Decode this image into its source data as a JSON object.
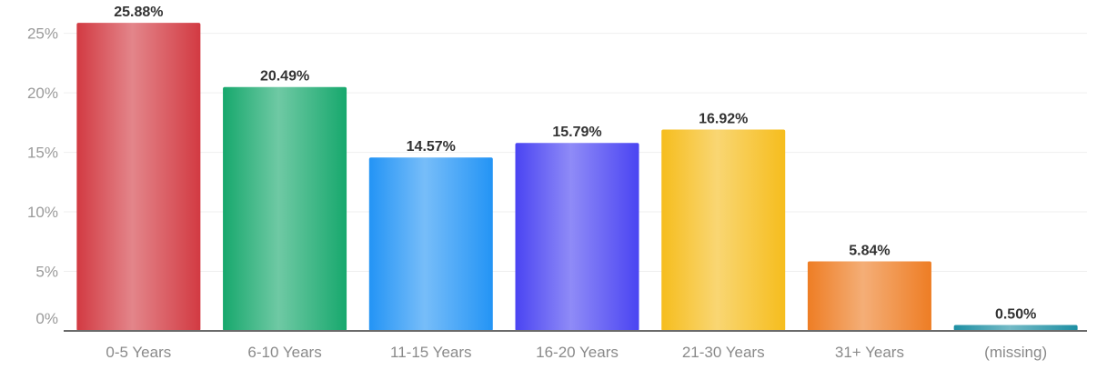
{
  "chart_data": {
    "type": "bar",
    "categories": [
      "0-5 Years",
      "6-10 Years",
      "11-15 Years",
      "16-20 Years",
      "21-30 Years",
      "31+ Years",
      "(missing)"
    ],
    "values": [
      25.88,
      20.49,
      14.57,
      15.79,
      16.92,
      5.84,
      0.5
    ],
    "data_labels": [
      "25.88%",
      "20.49%",
      "14.57%",
      "15.79%",
      "16.92%",
      "5.84%",
      "0.50%"
    ],
    "colors": [
      "#d23a42",
      "#17a86d",
      "#2394f5",
      "#4a44f2",
      "#f6bd1d",
      "#ee7d24",
      "#1e8fa3"
    ],
    "yticks": [
      0,
      5,
      10,
      15,
      20,
      25
    ],
    "ytick_labels": [
      "0%",
      "5%",
      "10%",
      "15%",
      "20%",
      "25%"
    ],
    "ylim": [
      0,
      26.5
    ],
    "grid": true,
    "legend": "none"
  }
}
